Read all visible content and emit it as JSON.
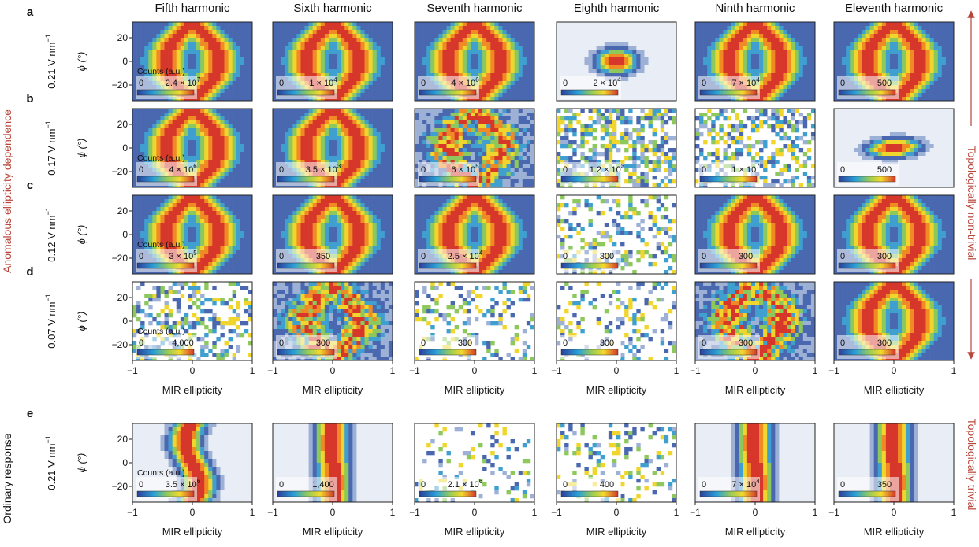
{
  "columns": [
    "Fifth harmonic",
    "Sixth harmonic",
    "Seventh harmonic",
    "Eighth harmonic",
    "Ninth harmonic",
    "Eleventh harmonic"
  ],
  "rows": [
    {
      "letter": "a",
      "field": "0.21 V nm",
      "field_exp": "−1",
      "cbar_max": [
        [
          "2.4 × 10",
          "7"
        ],
        [
          "1 × 10",
          "4"
        ],
        [
          "4 × 10",
          "6"
        ],
        [
          "2 × 10",
          "4"
        ],
        [
          "7 × 10",
          "4"
        ],
        [
          "500",
          ""
        ]
      ]
    },
    {
      "letter": "b",
      "field": "0.17 V nm",
      "field_exp": "−1",
      "cbar_max": [
        [
          "4 × 10",
          "6"
        ],
        [
          "3.5 × 10",
          "3"
        ],
        [
          "6 × 10",
          "5"
        ],
        [
          "1.2 × 10",
          "3"
        ],
        [
          "1 × 10",
          "7"
        ],
        [
          "500",
          ""
        ]
      ]
    },
    {
      "letter": "c",
      "field": "0.12 V nm",
      "field_exp": "−1",
      "cbar_max": [
        [
          "3 × 10",
          "5"
        ],
        [
          "350",
          ""
        ],
        [
          "2.5 × 10",
          "4"
        ],
        [
          "300",
          ""
        ],
        [
          "300",
          ""
        ],
        [
          "300",
          ""
        ]
      ]
    },
    {
      "letter": "d",
      "field": "0.07 V nm",
      "field_exp": "−1",
      "cbar_max": [
        [
          "4,000",
          ""
        ],
        [
          "300",
          ""
        ],
        [
          "300",
          ""
        ],
        [
          "300",
          ""
        ],
        [
          "300",
          ""
        ],
        [
          "300",
          ""
        ]
      ]
    },
    {
      "letter": "e",
      "field": "0.21 V nm",
      "field_exp": "−1",
      "cbar_max": [
        [
          "3.5 × 10",
          "6"
        ],
        [
          "1,400",
          ""
        ],
        [
          "2.1 × 10",
          "6"
        ],
        [
          "400",
          ""
        ],
        [
          "7 × 10",
          "4"
        ],
        [
          "350",
          ""
        ]
      ]
    }
  ],
  "counts_label": "Counts (a.u.)",
  "cbar_min": "0",
  "ylabel": "ϕ (°)",
  "yticks": [
    "20",
    "0",
    "−20"
  ],
  "xticks": [
    "−1",
    "0",
    "1"
  ],
  "xlabel": "MIR ellipticity",
  "left_label_main": "Anomalous ellipticity dependence",
  "left_label_e": "Ordinary response",
  "right_label_main": "Topologically non-trivial",
  "right_label_e": "Topologically trivial",
  "accent_color": "#b8463a",
  "colormap": [
    "#e9eef6",
    "#9db0d6",
    "#4a68b0",
    "#3fa0d0",
    "#8cc85c",
    "#f0d52c",
    "#f08a24",
    "#d6372a"
  ]
}
